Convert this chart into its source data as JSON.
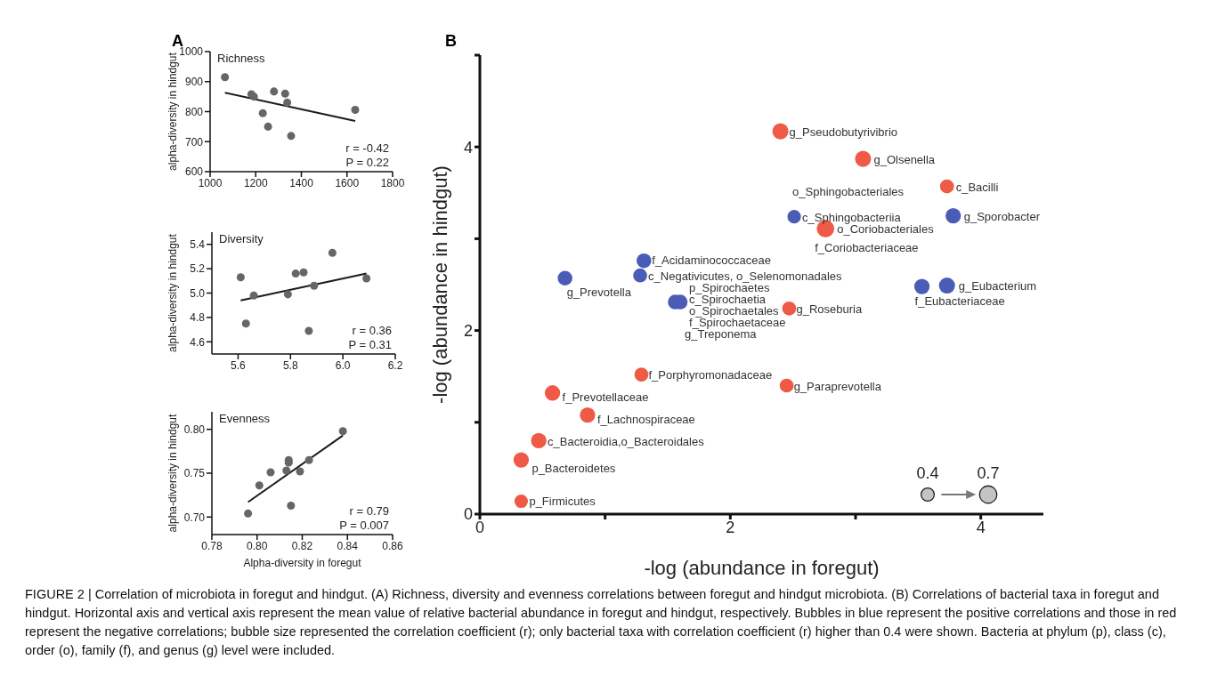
{
  "chart_data": [
    {
      "type": "scatter",
      "title": "Richness",
      "ylabel": "alpha-diversity in hindgut",
      "xlim": [
        1000,
        1800
      ],
      "xticks": [
        1000,
        1200,
        1400,
        1600,
        1800
      ],
      "ylim": [
        600,
        1000
      ],
      "yticks": [
        600,
        700,
        800,
        900,
        1000
      ],
      "series": [
        {
          "type": "scatter",
          "color": "#666666",
          "x": [
            1065,
            1181,
            1192,
            1231,
            1254,
            1280,
            1329,
            1338,
            1355,
            1636
          ],
          "values": [
            915,
            858,
            850,
            795,
            750,
            867,
            860,
            830,
            719,
            806
          ]
        },
        {
          "type": "line",
          "color": "#1a1a1a",
          "x": [
            1065,
            1636
          ],
          "values": [
            863,
            769
          ]
        }
      ],
      "annotations": [
        "A",
        "r = -0.42",
        "P = 0.22"
      ]
    },
    {
      "type": "scatter",
      "title": "Diversity",
      "ylabel": "alpha-diversity in hindgut",
      "xlim": [
        5.5,
        6.2
      ],
      "xticks": [
        5.6,
        5.8,
        {
          "value": 6,
          "label": "6.0"
        },
        6.2
      ],
      "ylim": [
        4.5,
        5.5
      ],
      "yticks": [
        4.6,
        4.8,
        {
          "value": 5,
          "label": "5.0"
        },
        5.2,
        5.4
      ],
      "series": [
        {
          "type": "scatter",
          "color": "#666666",
          "x": [
            5.61,
            5.63,
            5.66,
            5.79,
            5.82,
            5.85,
            5.87,
            5.89,
            5.96,
            6.09
          ],
          "values": [
            5.13,
            4.75,
            4.98,
            4.99,
            5.16,
            5.17,
            4.69,
            5.06,
            5.33,
            5.12
          ]
        },
        {
          "type": "line",
          "color": "#1a1a1a",
          "x": [
            5.61,
            6.09
          ],
          "values": [
            4.94,
            5.16
          ]
        }
      ],
      "annotations": [
        "r = 0.36",
        "P = 0.31"
      ]
    },
    {
      "type": "scatter",
      "title": "Evenness",
      "xlabel": "Alpha-diversity in foregut",
      "ylabel": "alpha-diversity in hindgut",
      "xlim": [
        0.78,
        0.86
      ],
      "xticks": [
        0.78,
        {
          "value": 0.8,
          "label": "0.80"
        },
        0.82,
        0.84,
        0.86
      ],
      "ylim": [
        0.68,
        0.82
      ],
      "yticks": [
        {
          "value": 0.7,
          "label": "0.70"
        },
        0.75,
        {
          "value": 0.8,
          "label": "0.80"
        }
      ],
      "series": [
        {
          "type": "scatter",
          "color": "#666666",
          "x": [
            0.796,
            0.801,
            0.806,
            0.813,
            0.814,
            0.814,
            0.815,
            0.819,
            0.823,
            0.838
          ],
          "values": [
            0.704,
            0.736,
            0.751,
            0.753,
            0.762,
            0.765,
            0.713,
            0.752,
            0.765,
            0.798
          ]
        },
        {
          "type": "line",
          "color": "#1a1a1a",
          "x": [
            0.796,
            0.838
          ],
          "values": [
            0.717,
            0.793
          ]
        }
      ],
      "annotations": [
        "r = 0.79",
        "P = 0.007"
      ]
    },
    {
      "type": "bubble",
      "xlabel": "-log (abundance in foregut)",
      "ylabel": "-log (abundance in hindgut)",
      "xlim": [
        0,
        4.5
      ],
      "xticks": [
        0,
        {
          "value": 1,
          "label": null
        },
        2,
        {
          "value": 3,
          "label": null
        },
        4
      ],
      "ylim": [
        0,
        5
      ],
      "yticks": [
        0,
        {
          "value": 1,
          "label": null
        },
        2,
        {
          "value": 3,
          "label": null
        },
        4,
        {
          "value": 5,
          "label": null
        }
      ],
      "size_legend": [
        0.4,
        0.7
      ],
      "series": [
        {
          "color": "#4a5cb5",
          "x": [
            2.51,
            3.78,
            1.31,
            1.28,
            0.68,
            1.56,
            1.6,
            3.53,
            3.73
          ],
          "values": [
            3.24,
            3.25,
            2.76,
            2.6,
            2.57,
            2.31,
            2.31,
            2.48,
            2.49
          ],
          "sizes": [
            0.42,
            0.55,
            0.5,
            0.45,
            0.5,
            0.5,
            0.5,
            0.55,
            0.6
          ]
        },
        {
          "color": "#ee5a45",
          "x": [
            2.4,
            3.06,
            3.73,
            2.76,
            2.47,
            1.29,
            2.45,
            0.58,
            0.86,
            0.47,
            0.33,
            0.33
          ],
          "values": [
            4.17,
            3.87,
            3.57,
            3.11,
            2.24,
            1.52,
            1.4,
            1.32,
            1.08,
            0.8,
            0.59,
            0.14
          ],
          "sizes": [
            0.6,
            0.6,
            0.45,
            0.7,
            0.45,
            0.45,
            0.45,
            0.55,
            0.55,
            0.55,
            0.55,
            0.42
          ]
        }
      ],
      "annotations": [
        {
          "text": "g_Pseudobutyrivibrio",
          "x": 2.4,
          "y": 4.17
        },
        {
          "text": "g_Olsenella",
          "x": 3.06,
          "y": 3.87
        },
        {
          "text": "c_Bacilli",
          "x": 3.73,
          "y": 3.57
        },
        {
          "text": "o_Sphingobacteriales",
          "x": 2.51,
          "y": 3.24
        },
        {
          "text": "c_Sphingobacteriia",
          "x": 2.51,
          "y": 3.24
        },
        {
          "text": "g_Sporobacter",
          "x": 3.78,
          "y": 3.25
        },
        {
          "text": "o_Coriobacteriales",
          "x": 2.76,
          "y": 3.11
        },
        {
          "text": "f_Coriobacteriaceae",
          "x": 2.76,
          "y": 3.11
        },
        {
          "text": "f_Acidaminococcaceae",
          "x": 1.31,
          "y": 2.76
        },
        {
          "text": "c_Negativicutes, o_Selenomonadales",
          "x": 1.28,
          "y": 2.6
        },
        {
          "text": "g_Prevotella",
          "x": 0.68,
          "y": 2.57
        },
        {
          "text": "p_Spirochaetes",
          "x": 1.6,
          "y": 2.31
        },
        {
          "text": "c_Spirochaetia",
          "x": 1.6,
          "y": 2.31
        },
        {
          "text": "o_Spirochaetales",
          "x": 1.6,
          "y": 2.31
        },
        {
          "text": "f_Spirochaetaceae",
          "x": 1.6,
          "y": 2.31
        },
        {
          "text": "g_Treponema",
          "x": 1.6,
          "y": 2.31
        },
        {
          "text": "g_Roseburia",
          "x": 2.47,
          "y": 2.24
        },
        {
          "text": "g_Eubacterium",
          "x": 3.73,
          "y": 2.49
        },
        {
          "text": "f_Eubacteriaceae",
          "x": 3.53,
          "y": 2.48
        },
        {
          "text": "f_Porphyromonadaceae",
          "x": 1.29,
          "y": 1.52
        },
        {
          "text": "g_Paraprevotella",
          "x": 2.45,
          "y": 1.4
        },
        {
          "text": "f_Prevotellaceae",
          "x": 0.58,
          "y": 1.32
        },
        {
          "text": "f_Lachnospiraceae",
          "x": 0.86,
          "y": 1.08
        },
        {
          "text": "c_Bacteroidia,o_Bacteroidales",
          "x": 0.47,
          "y": 0.8
        },
        {
          "text": "p_Bacteroidetes",
          "x": 0.33,
          "y": 0.59
        },
        {
          "text": "p_Firmicutes",
          "x": 0.33,
          "y": 0.14
        },
        "B",
        "FIGURE 2 | Correlation of microbiota in foregut and hindgut. (A) Richness, diversity and evenness correlations between foregut and hindgut microbiota. (B) Correlations of bacterial taxa in foregut and hindgut. Horizontal axis and vertical axis represent the mean value of relative bacterial abundance in foregut and hindgut, respectively. Bubbles in blue represent the positive correlations and those in red represent the negative correlations; bubble size represented the correlation coefficient (r); only bacterial taxa with correlation coefficient (r) higher than 0.4 were shown. Bacteria at phylum (p), class (c), order (o), family (f), and genus (g) level were included."
      ]
    }
  ]
}
